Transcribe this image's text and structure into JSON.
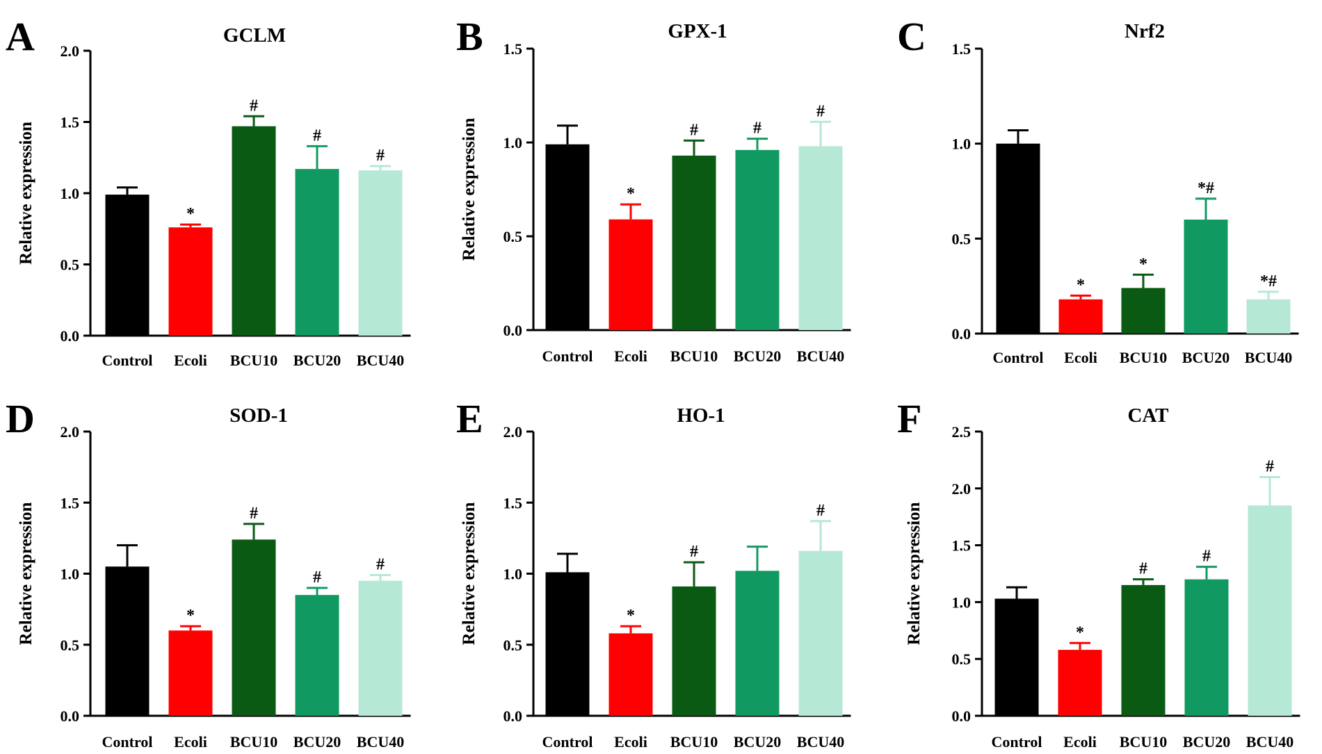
{
  "figure": {
    "categories": [
      "Control",
      "Ecoli",
      "BCU10",
      "BCU20",
      "BCU40"
    ],
    "bar_colors": [
      "#000000",
      "#ff0000",
      "#0a5a14",
      "#109a62",
      "#b6e8d6"
    ],
    "ylabel": "Relative expression"
  },
  "chart_data": [
    {
      "panel": "A",
      "type": "bar",
      "title": "GCLM",
      "xlabel": "",
      "ylabel": "Relative expression",
      "categories": [
        "Control",
        "Ecoli",
        "BCU10",
        "BCU20",
        "BCU40"
      ],
      "values": [
        0.99,
        0.76,
        1.47,
        1.17,
        1.16
      ],
      "errors": [
        0.05,
        0.02,
        0.07,
        0.16,
        0.03
      ],
      "annotations": [
        "",
        "*",
        "#",
        "#",
        "#"
      ],
      "ylim": [
        0,
        2.0
      ],
      "yticks": [
        0.0,
        0.5,
        1.0,
        1.5,
        2.0
      ],
      "ytick_labels": [
        "0.0",
        "0.5",
        "1.0",
        "1.5",
        "2.0"
      ]
    },
    {
      "panel": "B",
      "type": "bar",
      "title": "GPX-1",
      "xlabel": "",
      "ylabel": "Relative expression",
      "categories": [
        "Control",
        "Ecoli",
        "BCU10",
        "BCU20",
        "BCU40"
      ],
      "values": [
        0.99,
        0.59,
        0.93,
        0.96,
        0.98
      ],
      "errors": [
        0.1,
        0.08,
        0.08,
        0.06,
        0.13
      ],
      "annotations": [
        "",
        "*",
        "#",
        "#",
        "#"
      ],
      "ylim": [
        0,
        1.5
      ],
      "yticks": [
        0.0,
        0.5,
        1.0,
        1.5
      ],
      "ytick_labels": [
        "0.0",
        "0.5",
        "1.0",
        "1.5"
      ]
    },
    {
      "panel": "C",
      "type": "bar",
      "title": "Nrf2",
      "xlabel": "",
      "ylabel": "",
      "categories": [
        "Control",
        "Ecoli",
        "BCU10",
        "BCU20",
        "BCU40"
      ],
      "values": [
        1.0,
        0.18,
        0.24,
        0.6,
        0.18
      ],
      "errors": [
        0.07,
        0.02,
        0.07,
        0.11,
        0.04
      ],
      "annotations": [
        "",
        "*",
        "*",
        "*#",
        "*#"
      ],
      "ylim": [
        0,
        1.5
      ],
      "yticks": [
        0.0,
        0.5,
        1.0,
        1.5
      ],
      "ytick_labels": [
        "0.0",
        "0.5",
        "1.0",
        "1.5"
      ]
    },
    {
      "panel": "D",
      "type": "bar",
      "title": "SOD-1",
      "xlabel": "",
      "ylabel": "Relative expression",
      "categories": [
        "Control",
        "Ecoli",
        "BCU10",
        "BCU20",
        "BCU40"
      ],
      "values": [
        1.05,
        0.6,
        1.24,
        0.85,
        0.95
      ],
      "errors": [
        0.15,
        0.03,
        0.11,
        0.05,
        0.04
      ],
      "annotations": [
        "",
        "*",
        "#",
        "#",
        "#"
      ],
      "ylim": [
        0,
        2.0
      ],
      "yticks": [
        0.0,
        0.5,
        1.0,
        1.5,
        2.0
      ],
      "ytick_labels": [
        "0.0",
        "0.5",
        "1.0",
        "1.5",
        "2.0"
      ]
    },
    {
      "panel": "E",
      "type": "bar",
      "title": "HO-1",
      "xlabel": "",
      "ylabel": "Relative expression",
      "categories": [
        "Control",
        "Ecoli",
        "BCU10",
        "BCU20",
        "BCU40"
      ],
      "values": [
        1.01,
        0.58,
        0.91,
        1.02,
        1.16
      ],
      "errors": [
        0.13,
        0.05,
        0.17,
        0.17,
        0.21
      ],
      "annotations": [
        "",
        "*",
        "#",
        "",
        "#"
      ],
      "ylim": [
        0,
        2.0
      ],
      "yticks": [
        0.0,
        0.5,
        1.0,
        1.5,
        2.0
      ],
      "ytick_labels": [
        "0.0",
        "0.5",
        "1.0",
        "1.5",
        "2.0"
      ]
    },
    {
      "panel": "F",
      "type": "bar",
      "title": "CAT",
      "xlabel": "",
      "ylabel": "Relative expression",
      "categories": [
        "Control",
        "Ecoli",
        "BCU10",
        "BCU20",
        "BCU40"
      ],
      "values": [
        1.03,
        0.58,
        1.15,
        1.2,
        1.85
      ],
      "errors": [
        0.1,
        0.06,
        0.05,
        0.11,
        0.25
      ],
      "annotations": [
        "",
        "*",
        "#",
        "#",
        "#"
      ],
      "ylim": [
        0,
        2.5
      ],
      "yticks": [
        0.0,
        0.5,
        1.0,
        1.5,
        2.0,
        2.5
      ],
      "ytick_labels": [
        "0.0",
        "0.5",
        "1.0",
        "1.5",
        "2.0",
        "2.5"
      ]
    }
  ]
}
